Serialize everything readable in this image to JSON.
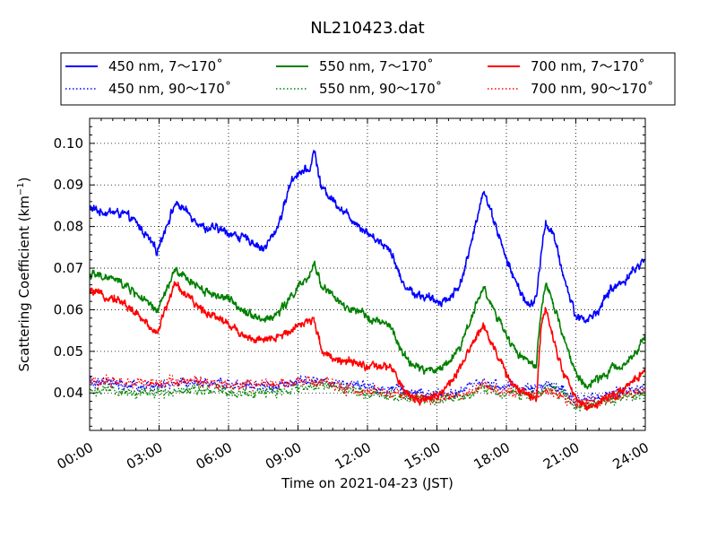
{
  "chart_data": {
    "type": "line",
    "title": "NL210423.dat",
    "xlabel": "Time on 2021-04-23 (JST)",
    "ylabel": "Scattering Coefficient (km",
    "ylabel_sup": "−1",
    "ylabel_close": ")",
    "xlim": [
      0,
      24
    ],
    "ylim": [
      0.031,
      0.106
    ],
    "x_unit": "hour",
    "xticks": [
      0,
      3,
      6,
      9,
      12,
      15,
      18,
      21,
      24
    ],
    "xtick_labels": [
      "00:00",
      "03:00",
      "06:00",
      "09:00",
      "12:00",
      "15:00",
      "18:00",
      "21:00",
      "24:00"
    ],
    "yticks": [
      0.04,
      0.05,
      0.06,
      0.07,
      0.08,
      0.09,
      0.1
    ],
    "ytick_labels": [
      "0.04",
      "0.05",
      "0.06",
      "0.07",
      "0.08",
      "0.09",
      "0.10"
    ],
    "grid": true,
    "grid_style": "dotted",
    "legend_position": "top-center, outside plot",
    "series": [
      {
        "name": "450 nm, 7～170˚",
        "color": "#0000ff",
        "linestyle": "solid",
        "x": [
          0,
          0.5,
          1,
          1.5,
          2,
          2.5,
          2.9,
          3.3,
          3.7,
          4,
          4.5,
          5,
          5.5,
          6,
          6.5,
          7,
          7.5,
          8,
          8.3,
          8.7,
          9,
          9.5,
          9.7,
          10,
          10.5,
          11,
          11.5,
          12,
          12.5,
          13,
          13.5,
          14,
          14.5,
          15,
          15.5,
          16,
          16.5,
          17,
          17.5,
          18,
          18.5,
          19,
          19.3,
          19.5,
          19.7,
          20,
          20.5,
          21,
          21.5,
          22,
          22.5,
          23,
          23.5,
          24
        ],
        "y": [
          0.0845,
          0.0835,
          0.0835,
          0.083,
          0.081,
          0.0775,
          0.074,
          0.08,
          0.0855,
          0.0845,
          0.082,
          0.0795,
          0.0795,
          0.0785,
          0.0775,
          0.0765,
          0.0745,
          0.0785,
          0.083,
          0.091,
          0.093,
          0.0935,
          0.0985,
          0.0895,
          0.0865,
          0.0835,
          0.081,
          0.0785,
          0.0765,
          0.0745,
          0.0665,
          0.064,
          0.063,
          0.062,
          0.0625,
          0.066,
          0.076,
          0.089,
          0.081,
          0.072,
          0.0655,
          0.0605,
          0.063,
          0.0735,
          0.081,
          0.0785,
          0.0675,
          0.0585,
          0.0575,
          0.06,
          0.065,
          0.0665,
          0.0695,
          0.072
        ]
      },
      {
        "name": "550 nm, 7～170˚",
        "color": "#008000",
        "linestyle": "solid",
        "x": [
          0,
          0.5,
          1,
          1.5,
          2,
          2.5,
          2.9,
          3.3,
          3.7,
          4,
          4.5,
          5,
          5.5,
          6,
          6.5,
          7,
          7.5,
          8,
          8.5,
          9,
          9.5,
          9.7,
          10,
          10.5,
          11,
          11.5,
          12,
          12.5,
          13,
          13.5,
          14,
          14.5,
          15,
          15.5,
          16,
          16.5,
          17,
          17.5,
          18,
          18.5,
          19,
          19.3,
          19.5,
          19.7,
          20,
          20.5,
          21,
          21.5,
          22,
          22.5,
          23,
          23.5,
          24
        ],
        "y": [
          0.0685,
          0.068,
          0.0675,
          0.066,
          0.064,
          0.0615,
          0.0595,
          0.0645,
          0.0695,
          0.068,
          0.0665,
          0.0645,
          0.0635,
          0.0625,
          0.0605,
          0.059,
          0.0575,
          0.0585,
          0.0615,
          0.0655,
          0.0675,
          0.0715,
          0.066,
          0.0635,
          0.0605,
          0.0595,
          0.0585,
          0.057,
          0.056,
          0.0495,
          0.0465,
          0.0455,
          0.0455,
          0.0475,
          0.051,
          0.0585,
          0.0655,
          0.0595,
          0.0535,
          0.0495,
          0.0475,
          0.0465,
          0.0595,
          0.0665,
          0.0615,
          0.053,
          0.0445,
          0.0415,
          0.0435,
          0.0455,
          0.0465,
          0.0495,
          0.0535
        ]
      },
      {
        "name": "700 nm, 7～170˚",
        "color": "#ff0000",
        "linestyle": "solid",
        "x": [
          0,
          0.5,
          1,
          1.5,
          2,
          2.5,
          2.9,
          3.3,
          3.7,
          4,
          4.5,
          5,
          5.5,
          6,
          6.5,
          7,
          7.5,
          8,
          8.5,
          9,
          9.5,
          9.7,
          10,
          10.5,
          11,
          11.5,
          12,
          12.5,
          13,
          13.5,
          14,
          14.5,
          15,
          15.5,
          16,
          16.5,
          17,
          17.5,
          18,
          18.5,
          19,
          19.3,
          19.5,
          19.7,
          20,
          20.5,
          21,
          21.5,
          22,
          22.5,
          23,
          23.5,
          24
        ],
        "y": [
          0.0645,
          0.0635,
          0.063,
          0.0615,
          0.059,
          0.0565,
          0.0545,
          0.0605,
          0.0665,
          0.0645,
          0.0615,
          0.0595,
          0.0585,
          0.0565,
          0.0545,
          0.053,
          0.0525,
          0.053,
          0.0545,
          0.0565,
          0.057,
          0.058,
          0.0505,
          0.0485,
          0.0475,
          0.047,
          0.0465,
          0.046,
          0.0465,
          0.041,
          0.0385,
          0.0385,
          0.0395,
          0.042,
          0.0455,
          0.0515,
          0.0565,
          0.0505,
          0.0445,
          0.0405,
          0.0395,
          0.0385,
          0.0565,
          0.061,
          0.0535,
          0.0445,
          0.0385,
          0.0365,
          0.0375,
          0.0395,
          0.0405,
          0.0425,
          0.046
        ]
      },
      {
        "name": "450 nm, 90～170˚",
        "color": "#0000ff",
        "linestyle": "dotted",
        "x": [
          0,
          1,
          2,
          3,
          4,
          5,
          6,
          7,
          8,
          9,
          10,
          11,
          12,
          13,
          14,
          15,
          16,
          17,
          18,
          19,
          20,
          21,
          22,
          23,
          24
        ],
        "y": [
          0.0425,
          0.042,
          0.0415,
          0.0415,
          0.0425,
          0.0425,
          0.042,
          0.0415,
          0.0415,
          0.0425,
          0.043,
          0.042,
          0.0415,
          0.041,
          0.04,
          0.0395,
          0.0405,
          0.0425,
          0.0415,
          0.041,
          0.042,
          0.0385,
          0.039,
          0.0405,
          0.0415
        ]
      },
      {
        "name": "550 nm, 90～170˚",
        "color": "#008000",
        "linestyle": "dotted",
        "x": [
          0,
          1,
          2,
          3,
          4,
          5,
          6,
          7,
          8,
          9,
          10,
          11,
          12,
          13,
          14,
          15,
          16,
          17,
          18,
          19,
          20,
          21,
          22,
          23,
          24
        ],
        "y": [
          0.0405,
          0.0405,
          0.04,
          0.04,
          0.041,
          0.041,
          0.0405,
          0.04,
          0.04,
          0.041,
          0.042,
          0.041,
          0.04,
          0.0395,
          0.0385,
          0.038,
          0.039,
          0.041,
          0.04,
          0.0395,
          0.041,
          0.037,
          0.0375,
          0.039,
          0.0395
        ]
      },
      {
        "name": "700 nm, 90～170˚",
        "color": "#ff0000",
        "linestyle": "dotted",
        "x": [
          0,
          1,
          2,
          3,
          4,
          5,
          6,
          7,
          8,
          9,
          10,
          11,
          12,
          13,
          14,
          15,
          16,
          17,
          18,
          19,
          20,
          21,
          22,
          23,
          24
        ],
        "y": [
          0.0425,
          0.043,
          0.0425,
          0.0425,
          0.043,
          0.0425,
          0.042,
          0.042,
          0.042,
          0.0425,
          0.0425,
          0.041,
          0.0405,
          0.04,
          0.039,
          0.0385,
          0.0395,
          0.0415,
          0.0405,
          0.0395,
          0.0405,
          0.0375,
          0.038,
          0.0395,
          0.0405
        ]
      }
    ]
  }
}
